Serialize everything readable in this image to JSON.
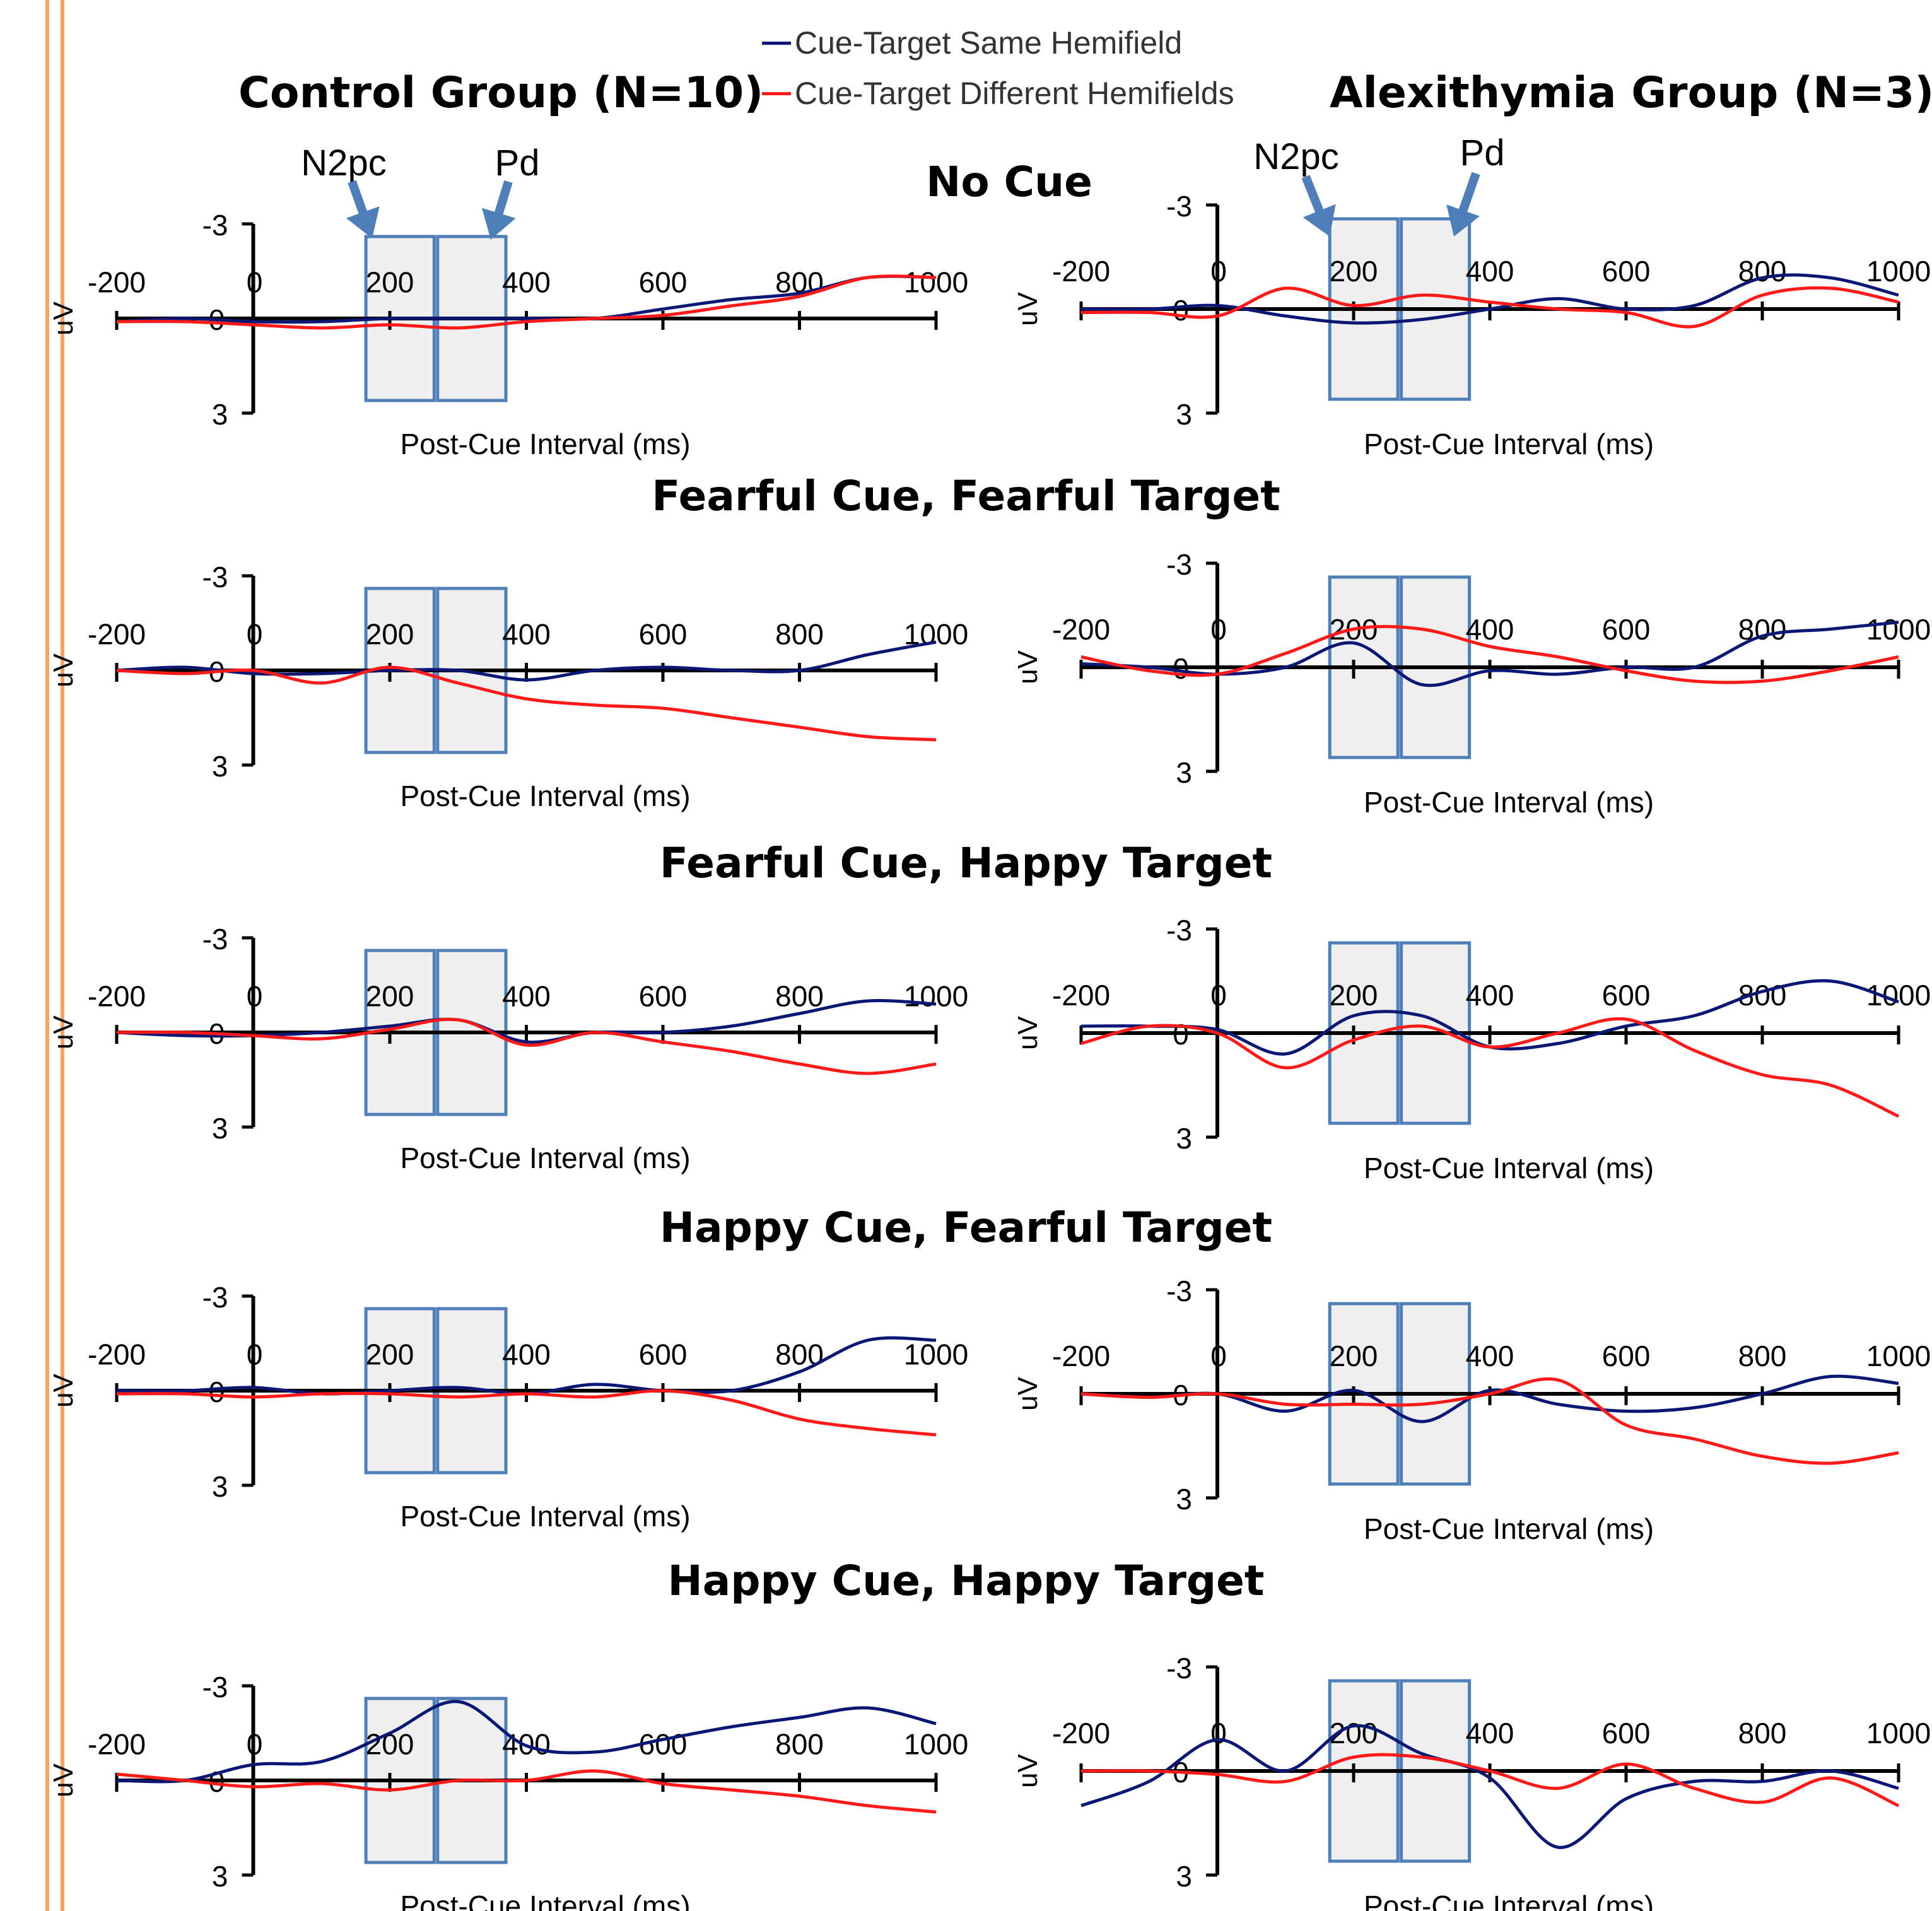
{
  "legend": {
    "same_label": "Cue-Target Same Hemifield",
    "diff_label": "Cue-Target Different Hemifields",
    "same_color": "#0B1775",
    "diff_color": "#FF1A1A"
  },
  "groups": {
    "control": "Control Group (N=10)",
    "alexithymia": "Alexithymia Group (N=3)"
  },
  "conditions": [
    "No Cue",
    "Fearful Cue, Fearful Target",
    "Fearful Cue, Happy Target",
    "Happy Cue, Fearful Target",
    "Happy Cue, Happy Target"
  ],
  "window_labels": {
    "n2pc": "N2pc",
    "pd": "Pd"
  },
  "window_color": "#4F7FB8",
  "chart_data": {
    "type": "line",
    "note_axis": "y axis inverted (negative up)",
    "x_label": "Post-Cue Interval (ms)",
    "y_label": "uV",
    "x_ticks": [
      -200,
      0,
      200,
      400,
      600,
      800,
      1000
    ],
    "y_ticks": [
      -3,
      0,
      3
    ],
    "xlim": [
      -200,
      1000
    ],
    "ylim": [
      -3,
      3
    ],
    "component_windows": [
      {
        "name": "N2pc",
        "range": [
          165,
          265
        ]
      },
      {
        "name": "Pd",
        "range": [
          270,
          370
        ]
      }
    ],
    "panels": [
      {
        "group": "Control Group (N=10)",
        "condition": "No Cue",
        "x": [
          -200,
          -100,
          0,
          100,
          200,
          300,
          400,
          500,
          600,
          700,
          800,
          900,
          1000
        ],
        "series": [
          {
            "name": "Cue-Target Same Hemifield",
            "values": [
              0.1,
              0.0,
              0.1,
              0.1,
              0.0,
              0.0,
              0.0,
              0.0,
              -0.3,
              -0.6,
              -0.8,
              -1.3,
              -1.3
            ]
          },
          {
            "name": "Cue-Target Different Hemifields",
            "values": [
              0.1,
              0.1,
              0.2,
              0.3,
              0.2,
              0.3,
              0.1,
              0.0,
              -0.1,
              -0.4,
              -0.7,
              -1.3,
              -1.3
            ]
          }
        ]
      },
      {
        "group": "Control Group (N=10)",
        "condition": "Fearful Cue, Fearful Target",
        "x": [
          -200,
          -100,
          0,
          100,
          200,
          300,
          400,
          500,
          600,
          700,
          800,
          900,
          1000
        ],
        "series": [
          {
            "name": "Cue-Target Same Hemifield",
            "values": [
              0.0,
              -0.1,
              0.1,
              0.1,
              0.0,
              0.0,
              0.3,
              0.0,
              -0.1,
              0.0,
              0.0,
              -0.5,
              -0.9
            ]
          },
          {
            "name": "Cue-Target Different Hemifields",
            "values": [
              0.0,
              0.1,
              0.0,
              0.4,
              -0.1,
              0.4,
              0.9,
              1.1,
              1.2,
              1.5,
              1.8,
              2.1,
              2.2
            ]
          }
        ]
      },
      {
        "group": "Control Group (N=10)",
        "condition": "Fearful Cue, Happy Target",
        "x": [
          -200,
          -100,
          0,
          100,
          200,
          300,
          400,
          500,
          600,
          700,
          800,
          900,
          1000
        ],
        "series": [
          {
            "name": "Cue-Target Same Hemifield",
            "values": [
              0.0,
              0.1,
              0.1,
              0.0,
              -0.2,
              -0.4,
              0.3,
              0.0,
              0.0,
              -0.2,
              -0.6,
              -1.0,
              -0.9
            ]
          },
          {
            "name": "Cue-Target Different Hemifields",
            "values": [
              0.0,
              0.0,
              0.1,
              0.2,
              -0.1,
              -0.4,
              0.4,
              0.0,
              0.3,
              0.6,
              1.0,
              1.3,
              1.0
            ]
          }
        ]
      },
      {
        "group": "Control Group (N=10)",
        "condition": "Happy Cue, Fearful Target",
        "x": [
          -200,
          -100,
          0,
          100,
          200,
          300,
          400,
          500,
          600,
          700,
          800,
          900,
          1000
        ],
        "series": [
          {
            "name": "Cue-Target Same Hemifield",
            "values": [
              0.0,
              0.0,
              -0.1,
              0.1,
              0.0,
              -0.1,
              0.1,
              -0.2,
              0.0,
              0.0,
              -0.6,
              -1.6,
              -1.6
            ]
          },
          {
            "name": "Cue-Target Different Hemifields",
            "values": [
              0.1,
              0.1,
              0.2,
              0.1,
              0.1,
              0.2,
              0.1,
              0.2,
              0.0,
              0.3,
              0.9,
              1.2,
              1.4
            ]
          }
        ]
      },
      {
        "group": "Control Group (N=10)",
        "condition": "Happy Cue, Happy Target",
        "x": [
          -200,
          -100,
          0,
          100,
          200,
          300,
          400,
          500,
          600,
          700,
          800,
          900,
          1000
        ],
        "series": [
          {
            "name": "Cue-Target Same Hemifield",
            "values": [
              0.0,
              0.0,
              -0.5,
              -0.6,
              -1.5,
              -2.5,
              -1.1,
              -0.9,
              -1.3,
              -1.7,
              -2.0,
              -2.3,
              -1.8
            ]
          },
          {
            "name": "Cue-Target Different Hemifields",
            "values": [
              -0.2,
              0.0,
              0.2,
              0.1,
              0.3,
              0.0,
              0.0,
              -0.3,
              0.1,
              0.3,
              0.5,
              0.8,
              1.0
            ]
          }
        ]
      },
      {
        "group": "Alexithymia Group (N=3)",
        "condition": "No Cue",
        "x": [
          -200,
          -100,
          0,
          100,
          200,
          300,
          400,
          500,
          600,
          700,
          800,
          900,
          1000
        ],
        "series": [
          {
            "name": "Cue-Target Same Hemifield",
            "values": [
              0.0,
              0.0,
              -0.1,
              0.2,
              0.4,
              0.3,
              0.0,
              -0.3,
              0.0,
              -0.1,
              -0.9,
              -0.9,
              -0.4
            ]
          },
          {
            "name": "Cue-Target Different Hemifields",
            "values": [
              0.1,
              0.1,
              0.2,
              -0.6,
              -0.1,
              -0.4,
              -0.2,
              0.0,
              0.1,
              0.5,
              -0.4,
              -0.6,
              -0.2
            ]
          }
        ]
      },
      {
        "group": "Alexithymia Group (N=3)",
        "condition": "Fearful Cue, Fearful Target",
        "x": [
          -200,
          -100,
          0,
          100,
          200,
          300,
          400,
          500,
          600,
          700,
          800,
          900,
          1000
        ],
        "series": [
          {
            "name": "Cue-Target Same Hemifield",
            "values": [
              -0.1,
              0.0,
              0.2,
              0.0,
              -0.7,
              0.5,
              0.1,
              0.2,
              0.0,
              0.0,
              -0.9,
              -1.1,
              -1.3
            ]
          },
          {
            "name": "Cue-Target Different Hemifields",
            "values": [
              -0.3,
              0.1,
              0.2,
              -0.4,
              -1.1,
              -1.1,
              -0.6,
              -0.3,
              0.1,
              0.4,
              0.4,
              0.1,
              -0.3
            ]
          }
        ]
      },
      {
        "group": "Alexithymia Group (N=3)",
        "condition": "Fearful Cue, Happy Target",
        "x": [
          -200,
          -100,
          0,
          100,
          200,
          300,
          400,
          500,
          600,
          700,
          800,
          900,
          1000
        ],
        "series": [
          {
            "name": "Cue-Target Same Hemifield",
            "values": [
              -0.2,
              -0.2,
              -0.1,
              0.6,
              -0.5,
              -0.5,
              0.4,
              0.3,
              -0.2,
              -0.5,
              -1.2,
              -1.5,
              -0.9
            ]
          },
          {
            "name": "Cue-Target Different Hemifields",
            "values": [
              0.3,
              -0.2,
              0.0,
              1.0,
              0.2,
              -0.2,
              0.4,
              0.0,
              -0.4,
              0.5,
              1.2,
              1.5,
              2.4
            ]
          }
        ]
      },
      {
        "group": "Alexithymia Group (N=3)",
        "condition": "Happy Cue, Fearful Target",
        "x": [
          -200,
          -100,
          0,
          100,
          200,
          300,
          400,
          500,
          600,
          700,
          800,
          900,
          1000
        ],
        "series": [
          {
            "name": "Cue-Target Same Hemifield",
            "values": [
              0.0,
              0.1,
              0.0,
              0.5,
              -0.1,
              0.8,
              -0.1,
              0.3,
              0.5,
              0.4,
              0.0,
              -0.5,
              -0.3
            ]
          },
          {
            "name": "Cue-Target Different Hemifields",
            "values": [
              0.0,
              0.1,
              0.0,
              0.3,
              0.3,
              0.3,
              0.0,
              -0.4,
              0.9,
              1.3,
              1.8,
              2.0,
              1.7
            ]
          }
        ]
      },
      {
        "group": "Alexithymia Group (N=3)",
        "condition": "Happy Cue, Happy Target",
        "x": [
          -200,
          -100,
          0,
          100,
          200,
          300,
          400,
          500,
          600,
          700,
          800,
          900,
          1000
        ],
        "series": [
          {
            "name": "Cue-Target Same Hemifield",
            "values": [
              1.0,
              0.3,
              -0.9,
              0.0,
              -1.3,
              -0.5,
              0.2,
              2.2,
              0.8,
              0.3,
              0.3,
              0.0,
              0.5
            ]
          },
          {
            "name": "Cue-Target Different Hemifields",
            "values": [
              0.0,
              0.0,
              0.1,
              0.3,
              -0.4,
              -0.4,
              0.0,
              0.5,
              -0.2,
              0.5,
              0.9,
              0.2,
              1.0
            ]
          }
        ]
      }
    ]
  }
}
